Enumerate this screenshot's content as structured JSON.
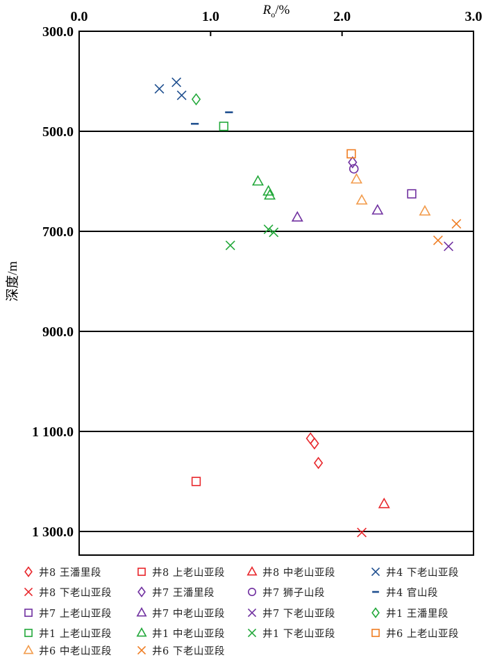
{
  "chart_data": {
    "type": "scatter",
    "xlabel": "Ro/%",
    "ylabel": "深度/m",
    "xlim": [
      0,
      3.0
    ],
    "ylim": [
      300,
      1350
    ],
    "y_reversed": true,
    "x_axis_position": "top",
    "x_ticks": [
      {
        "value": 0.0,
        "label": "0.0"
      },
      {
        "value": 1.0,
        "label": "1.0"
      },
      {
        "value": 2.0,
        "label": "2.0"
      },
      {
        "value": 3.0,
        "label": "3.0"
      }
    ],
    "y_ticks": [
      {
        "value": 300,
        "label": "300.0"
      },
      {
        "value": 500,
        "label": "500.0"
      },
      {
        "value": 700,
        "label": "700.0"
      },
      {
        "value": 900,
        "label": "900.0"
      },
      {
        "value": 1100,
        "label": "1 100.0"
      },
      {
        "value": 1300,
        "label": "1 300.0"
      }
    ],
    "gridlines_y": [
      500,
      700,
      900,
      1100,
      1300
    ],
    "legend_position": "bottom",
    "series": [
      {
        "name": "井8 王潘里段",
        "marker": "diamond",
        "color": "#e8262b",
        "points": [
          [
            1.76,
            1114
          ],
          [
            1.79,
            1124
          ],
          [
            1.82,
            1163
          ]
        ]
      },
      {
        "name": "井8 上老山亚段",
        "marker": "square",
        "color": "#e8262b",
        "points": [
          [
            0.89,
            1200
          ]
        ]
      },
      {
        "name": "井8 中老山亚段",
        "marker": "triangle",
        "color": "#e8262b",
        "points": [
          [
            2.32,
            1245
          ]
        ]
      },
      {
        "name": "井4 下老山亚段",
        "marker": "x",
        "color": "#1f4f8f",
        "points": [
          [
            0.61,
            415
          ],
          [
            0.74,
            402
          ],
          [
            0.78,
            428
          ]
        ]
      },
      {
        "name": "井8 下老山亚段",
        "marker": "x",
        "color": "#e8262b",
        "points": [
          [
            2.15,
            1302
          ]
        ]
      },
      {
        "name": "井7 王潘里段",
        "marker": "diamond",
        "color": "#7030a0",
        "points": [
          [
            2.08,
            562
          ]
        ]
      },
      {
        "name": "井7 狮子山段",
        "marker": "circle",
        "color": "#7030a0",
        "points": [
          [
            2.09,
            575
          ]
        ]
      },
      {
        "name": "井4 官山段",
        "marker": "dash",
        "color": "#1f4f8f",
        "points": [
          [
            0.88,
            485
          ],
          [
            1.14,
            462
          ]
        ]
      },
      {
        "name": "井7 上老山亚段",
        "marker": "square",
        "color": "#7030a0",
        "points": [
          [
            2.53,
            625
          ]
        ]
      },
      {
        "name": "井7 中老山亚段",
        "marker": "triangle",
        "color": "#7030a0",
        "points": [
          [
            1.66,
            672
          ],
          [
            2.27,
            658
          ]
        ]
      },
      {
        "name": "井7 下老山亚段",
        "marker": "x",
        "color": "#7030a0",
        "points": [
          [
            2.81,
            730
          ]
        ]
      },
      {
        "name": "井1 王潘里段",
        "marker": "diamond",
        "color": "#22a83a",
        "points": [
          [
            0.89,
            436
          ]
        ]
      },
      {
        "name": "井1 上老山亚段",
        "marker": "square",
        "color": "#22a83a",
        "points": [
          [
            1.1,
            490
          ]
        ]
      },
      {
        "name": "井1 中老山亚段",
        "marker": "triangle",
        "color": "#22a83a",
        "points": [
          [
            1.36,
            600
          ],
          [
            1.44,
            620
          ],
          [
            1.45,
            628
          ]
        ]
      },
      {
        "name": "井1 下老山亚段",
        "marker": "x",
        "color": "#22a83a",
        "points": [
          [
            1.15,
            728
          ],
          [
            1.44,
            696
          ],
          [
            1.48,
            702
          ]
        ]
      },
      {
        "name": "井6 上老山亚段",
        "marker": "square",
        "color": "#ef7d22",
        "points": [
          [
            2.07,
            545
          ]
        ]
      },
      {
        "name": "井6 中老山亚段",
        "marker": "triangle",
        "color": "#f29b4b",
        "points": [
          [
            2.11,
            596
          ],
          [
            2.15,
            638
          ],
          [
            2.63,
            660
          ]
        ]
      },
      {
        "name": "井6 下老山亚段",
        "marker": "x",
        "color": "#ef7d22",
        "points": [
          [
            2.73,
            718
          ],
          [
            2.87,
            685
          ]
        ]
      }
    ]
  }
}
